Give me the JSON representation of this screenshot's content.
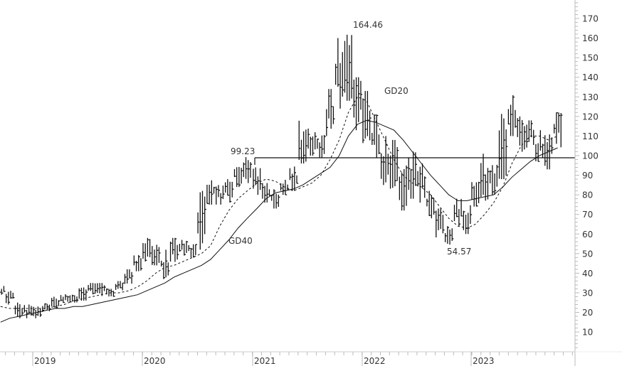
{
  "chart_data": {
    "type": "line",
    "subtype": "ohlc-bar with moving averages",
    "title": "",
    "xlabel": "",
    "ylabel": "",
    "ylim": [
      0,
      175
    ],
    "y_ticks": [
      10,
      20,
      30,
      40,
      50,
      60,
      70,
      80,
      90,
      100,
      110,
      120,
      130,
      140,
      150,
      160,
      170
    ],
    "x_ticks": [
      "2019",
      "2020",
      "2021",
      "2022",
      "2023"
    ],
    "grid": false,
    "legend": "none (inline labels)",
    "annotations": [
      {
        "text": "164.46",
        "type": "peak",
        "x": "2021-11",
        "y": 164.46
      },
      {
        "text": "99.23",
        "type": "level",
        "x": "2020-12",
        "y": 99.23
      },
      {
        "text": "54.57",
        "type": "trough",
        "x": "2022-10",
        "y": 54.57
      },
      {
        "text": "GD20",
        "type": "series-label"
      },
      {
        "text": "GD40",
        "type": "series-label"
      }
    ],
    "horizontal_line": {
      "y": 99.23,
      "from": "2020-12",
      "to": "end"
    },
    "series": [
      {
        "name": "Price (weekly high/low)",
        "style": "ohlc",
        "points": [
          {
            "t": "2018-09",
            "h": 34,
            "l": 29
          },
          {
            "t": "2018-10",
            "h": 31,
            "l": 24
          },
          {
            "t": "2018-11",
            "h": 25,
            "l": 17
          },
          {
            "t": "2018-12",
            "h": 24,
            "l": 17
          },
          {
            "t": "2019-01",
            "h": 23,
            "l": 17
          },
          {
            "t": "2019-02",
            "h": 24,
            "l": 20
          },
          {
            "t": "2019-03",
            "h": 28,
            "l": 22
          },
          {
            "t": "2019-04",
            "h": 29,
            "l": 25
          },
          {
            "t": "2019-05",
            "h": 29,
            "l": 25
          },
          {
            "t": "2019-06",
            "h": 33,
            "l": 26
          },
          {
            "t": "2019-07",
            "h": 35,
            "l": 29
          },
          {
            "t": "2019-08",
            "h": 35,
            "l": 28
          },
          {
            "t": "2019-09",
            "h": 32,
            "l": 27
          },
          {
            "t": "2019-10",
            "h": 36,
            "l": 30
          },
          {
            "t": "2019-11",
            "h": 42,
            "l": 34
          },
          {
            "t": "2019-12",
            "h": 50,
            "l": 41
          },
          {
            "t": "2020-01",
            "h": 58,
            "l": 46
          },
          {
            "t": "2020-02",
            "h": 56,
            "l": 44
          },
          {
            "t": "2020-03",
            "h": 52,
            "l": 37
          },
          {
            "t": "2020-04",
            "h": 58,
            "l": 45
          },
          {
            "t": "2020-05",
            "h": 57,
            "l": 49
          },
          {
            "t": "2020-06",
            "h": 56,
            "l": 48
          },
          {
            "t": "2020-07",
            "h": 82,
            "l": 52
          },
          {
            "t": "2020-08",
            "h": 88,
            "l": 75
          },
          {
            "t": "2020-09",
            "h": 85,
            "l": 75
          },
          {
            "t": "2020-10",
            "h": 88,
            "l": 76
          },
          {
            "t": "2020-11",
            "h": 96,
            "l": 84
          },
          {
            "t": "2020-12",
            "h": 99.23,
            "l": 86
          },
          {
            "t": "2021-01",
            "h": 94,
            "l": 80
          },
          {
            "t": "2021-02",
            "h": 86,
            "l": 76
          },
          {
            "t": "2021-03",
            "h": 84,
            "l": 73
          },
          {
            "t": "2021-04",
            "h": 88,
            "l": 80
          },
          {
            "t": "2021-05",
            "h": 95,
            "l": 82
          },
          {
            "t": "2021-06",
            "h": 118,
            "l": 96
          },
          {
            "t": "2021-07",
            "h": 114,
            "l": 100
          },
          {
            "t": "2021-08",
            "h": 112,
            "l": 99
          },
          {
            "t": "2021-09",
            "h": 134,
            "l": 110
          },
          {
            "t": "2021-10",
            "h": 160,
            "l": 124
          },
          {
            "t": "2021-11",
            "h": 164.46,
            "l": 128
          },
          {
            "t": "2021-12",
            "h": 140,
            "l": 112
          },
          {
            "t": "2022-01",
            "h": 133,
            "l": 99
          },
          {
            "t": "2022-02",
            "h": 121,
            "l": 98
          },
          {
            "t": "2022-03",
            "h": 110,
            "l": 85
          },
          {
            "t": "2022-04",
            "h": 108,
            "l": 82
          },
          {
            "t": "2022-05",
            "h": 95,
            "l": 72
          },
          {
            "t": "2022-06",
            "h": 103,
            "l": 78
          },
          {
            "t": "2022-07",
            "h": 96,
            "l": 76
          },
          {
            "t": "2022-08",
            "h": 82,
            "l": 68
          },
          {
            "t": "2022-09",
            "h": 73,
            "l": 56
          },
          {
            "t": "2022-10",
            "h": 64,
            "l": 54.57
          },
          {
            "t": "2022-11",
            "h": 78,
            "l": 64
          },
          {
            "t": "2022-12",
            "h": 75,
            "l": 60
          },
          {
            "t": "2023-01",
            "h": 88,
            "l": 74
          },
          {
            "t": "2023-02",
            "h": 101,
            "l": 77
          },
          {
            "t": "2023-03",
            "h": 98,
            "l": 80
          },
          {
            "t": "2023-04",
            "h": 132,
            "l": 88
          },
          {
            "t": "2023-05",
            "h": 132,
            "l": 110
          },
          {
            "t": "2023-06",
            "h": 120,
            "l": 102
          },
          {
            "t": "2023-07",
            "h": 118,
            "l": 104
          },
          {
            "t": "2023-08",
            "h": 113,
            "l": 97
          },
          {
            "t": "2023-09",
            "h": 111,
            "l": 93
          },
          {
            "t": "2023-10",
            "h": 122,
            "l": 104
          }
        ]
      },
      {
        "name": "GD20",
        "style": "dashed",
        "values": [
          23,
          22,
          22,
          22,
          22,
          22,
          23,
          24,
          26,
          27,
          28,
          29,
          30,
          30,
          31,
          33,
          36,
          40,
          43,
          44,
          46,
          48,
          50,
          54,
          64,
          72,
          78,
          82,
          86,
          88,
          87,
          84,
          82,
          84,
          86,
          90,
          98,
          108,
          122,
          130,
          128,
          118,
          108,
          98,
          90,
          86,
          84,
          80,
          74,
          68,
          64,
          63,
          65,
          70,
          76,
          84,
          96,
          105,
          110,
          110,
          108,
          110
        ]
      },
      {
        "name": "GD40",
        "style": "solid",
        "values": [
          15,
          17,
          18,
          19,
          20,
          21,
          22,
          22,
          23,
          23,
          24,
          25,
          26,
          27,
          28,
          29,
          31,
          33,
          35,
          38,
          40,
          42,
          44,
          47,
          52,
          57,
          63,
          68,
          73,
          78,
          81,
          82,
          83,
          85,
          88,
          91,
          94,
          100,
          110,
          116,
          118,
          117,
          115,
          113,
          108,
          102,
          96,
          90,
          85,
          80,
          77,
          77,
          78,
          79,
          80,
          84,
          89,
          93,
          97,
          100,
          102,
          104
        ]
      }
    ]
  },
  "labels": {
    "peak": "164.46",
    "level": "99.23",
    "trough": "54.57",
    "gd20": "GD20",
    "gd40": "GD40"
  },
  "axis": {
    "y_ticks": [
      "170",
      "160",
      "150",
      "140",
      "130",
      "120",
      "110",
      "100",
      "90",
      "80",
      "70",
      "60",
      "50",
      "40",
      "30",
      "20",
      "10"
    ],
    "x_ticks": [
      "2019",
      "2020",
      "2021",
      "2022",
      "2023"
    ]
  },
  "colors": {
    "bars": "#111111",
    "ma": "#111111",
    "axis": "#bbbbbb",
    "text": "#333333",
    "background": "#ffffff"
  }
}
